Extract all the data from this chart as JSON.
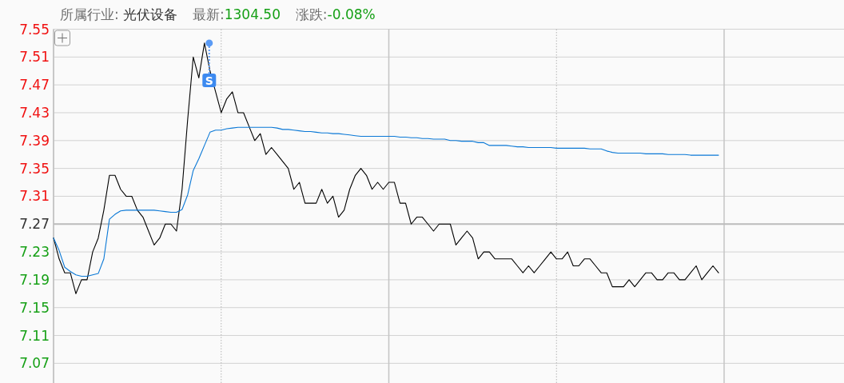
{
  "chart_data": {
    "type": "line",
    "title": "所属行业: 光伏设备  最新:1304.50  涨跌:-0.08%",
    "categories": [
      null,
      null,
      null,
      null,
      null,
      null,
      null,
      null,
      null,
      null,
      null,
      null,
      null,
      null,
      null,
      null,
      null,
      null,
      null,
      null,
      null,
      null,
      null,
      null,
      null,
      null,
      null,
      null,
      null,
      null,
      null,
      null,
      null,
      null,
      null,
      null,
      null,
      null,
      null,
      null,
      null,
      null,
      null,
      null,
      null,
      null,
      null,
      null,
      null,
      null,
      null,
      null,
      null,
      null,
      null,
      null,
      null,
      null,
      null,
      null,
      null,
      null,
      null,
      null,
      null,
      null,
      null,
      null,
      null,
      null,
      null,
      null,
      null,
      null,
      null,
      null,
      null,
      null,
      null,
      null,
      null,
      null,
      null,
      null,
      null,
      null,
      null,
      null,
      null,
      null,
      null,
      null,
      null,
      null,
      null,
      null,
      null,
      null,
      null,
      null,
      null,
      null,
      null,
      null,
      null,
      null,
      null,
      null,
      null,
      null,
      null,
      null,
      null,
      null,
      null,
      null,
      null,
      null,
      null,
      null,
      null
    ],
    "series": [
      {
        "color": "#000000",
        "values": [
          7.25,
          7.22,
          7.2,
          7.2,
          7.17,
          7.19,
          7.19,
          7.23,
          7.25,
          7.29,
          7.34,
          7.34,
          7.32,
          7.31,
          7.31,
          7.29,
          7.28,
          7.26,
          7.24,
          7.25,
          7.27,
          7.27,
          7.26,
          7.32,
          7.42,
          7.51,
          7.48,
          7.53,
          7.49,
          7.46,
          7.43,
          7.45,
          7.46,
          7.43,
          7.43,
          7.41,
          7.39,
          7.4,
          7.37,
          7.38,
          7.37,
          7.36,
          7.35,
          7.32,
          7.33,
          7.3,
          7.3,
          7.3,
          7.32,
          7.3,
          7.31,
          7.28,
          7.29,
          7.32,
          7.34,
          7.35,
          7.34,
          7.32,
          7.33,
          7.32,
          7.33,
          7.33,
          7.3,
          7.3,
          7.27,
          7.28,
          7.28,
          7.27,
          7.26,
          7.27,
          7.27,
          7.27,
          7.24,
          7.25,
          7.26,
          7.25,
          7.22,
          7.23,
          7.23,
          7.22,
          7.22,
          7.22,
          7.22,
          7.21,
          7.2,
          7.21,
          7.2,
          7.21,
          7.22,
          7.23,
          7.22,
          7.22,
          7.23,
          7.21,
          7.21,
          7.22,
          7.22,
          7.21,
          7.2,
          7.2,
          7.18,
          7.18,
          7.18,
          7.19,
          7.18,
          7.19,
          7.2,
          7.2,
          7.19,
          7.19,
          7.2,
          7.2,
          7.19,
          7.19,
          7.2,
          7.21,
          7.19,
          7.2,
          7.21,
          7.2,
          null
        ]
      },
      {
        "color": "#0a78d6",
        "values": [
          7.25,
          7.232,
          7.208,
          7.202,
          7.197,
          7.195,
          7.195,
          7.197,
          7.199,
          7.22,
          7.277,
          7.284,
          7.289,
          7.29,
          7.29,
          7.29,
          7.29,
          7.29,
          7.29,
          7.289,
          7.288,
          7.287,
          7.287,
          7.291,
          7.312,
          7.347,
          7.364,
          7.383,
          7.402,
          7.405,
          7.405,
          7.407,
          7.408,
          7.409,
          7.409,
          7.409,
          7.409,
          7.409,
          7.409,
          7.409,
          7.408,
          7.406,
          7.406,
          7.405,
          7.404,
          7.403,
          7.403,
          7.402,
          7.401,
          7.401,
          7.4,
          7.4,
          7.399,
          7.398,
          7.397,
          7.396,
          7.396,
          7.396,
          7.396,
          7.396,
          7.396,
          7.396,
          7.395,
          7.395,
          7.394,
          7.394,
          7.393,
          7.393,
          7.392,
          7.392,
          7.392,
          7.39,
          7.39,
          7.389,
          7.389,
          7.389,
          7.387,
          7.387,
          7.383,
          7.383,
          7.383,
          7.383,
          7.382,
          7.381,
          7.381,
          7.38,
          7.38,
          7.38,
          7.38,
          7.38,
          7.379,
          7.379,
          7.379,
          7.379,
          7.379,
          7.379,
          7.378,
          7.378,
          7.378,
          7.375,
          7.373,
          7.372,
          7.372,
          7.372,
          7.372,
          7.372,
          7.371,
          7.371,
          7.371,
          7.371,
          7.37,
          7.37,
          7.37,
          7.37,
          7.369,
          7.369,
          7.369,
          7.369,
          7.369,
          7.369,
          null
        ]
      }
    ],
    "ylim": [
      7.04,
      7.55
    ],
    "yticks": [
      7.07,
      7.11,
      7.15,
      7.19,
      7.23,
      7.27,
      7.31,
      7.35,
      7.39,
      7.43,
      7.47,
      7.51,
      7.55
    ],
    "tick_labels": "y",
    "grid": true,
    "ref_lines": [
      {
        "axis": "y",
        "value": 7.27,
        "color": "#bdbdbd"
      }
    ],
    "annotations": [
      {
        "text": "S",
        "y": 7.53
      }
    ]
  }
}
